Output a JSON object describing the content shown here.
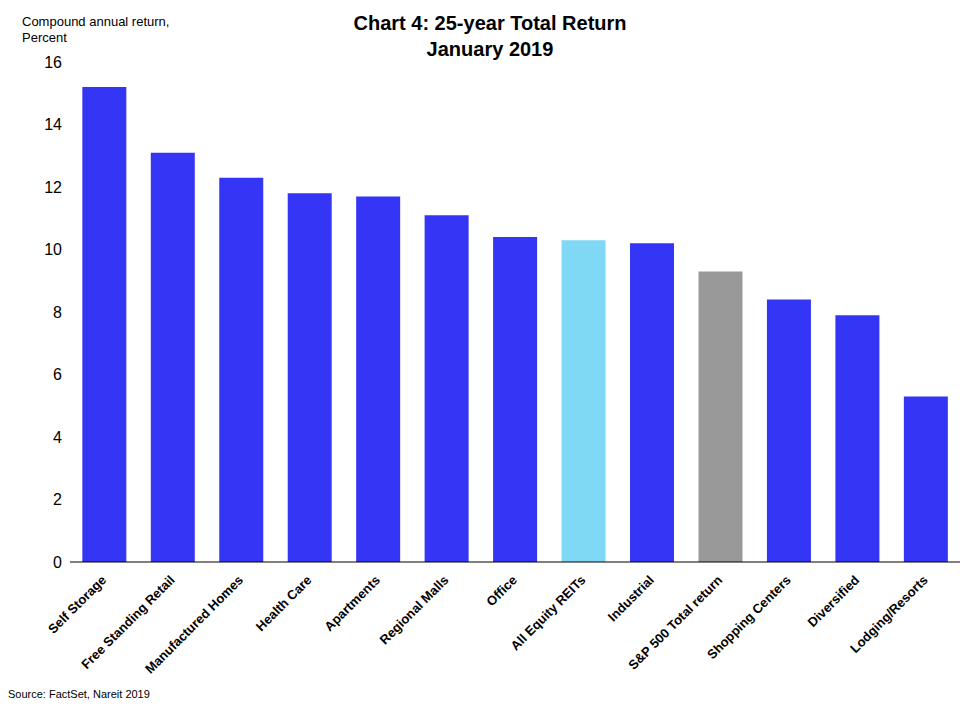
{
  "chart_data": {
    "type": "bar",
    "title": "Chart 4: 25-year Total Return",
    "subtitle": "January 2019",
    "y_label": "Compound annual return, Percent",
    "source": "Source: FactSet, Nareit 2019",
    "categories": [
      "Self Storage",
      "Free Standing Retail",
      "Manufactured Homes",
      "Health Care",
      "Apartments",
      "Regional Malls",
      "Office",
      "All Equity REITs",
      "Industrial",
      "S&P 500 Total return",
      "Shopping Centers",
      "Diversified",
      "Lodging/Resorts"
    ],
    "values": [
      15.2,
      13.1,
      12.3,
      11.8,
      11.7,
      11.1,
      10.4,
      10.3,
      10.2,
      9.3,
      8.4,
      7.9,
      5.3
    ],
    "colors": [
      "#3535f6",
      "#3535f6",
      "#3535f6",
      "#3535f6",
      "#3535f6",
      "#3535f6",
      "#3535f6",
      "#7fd8f4",
      "#3535f6",
      "#999999",
      "#3535f6",
      "#3535f6",
      "#3535f6"
    ],
    "ylim": [
      0,
      16
    ],
    "yticks": [
      0,
      2,
      4,
      6,
      8,
      10,
      12,
      14,
      16
    ],
    "grid": false
  }
}
